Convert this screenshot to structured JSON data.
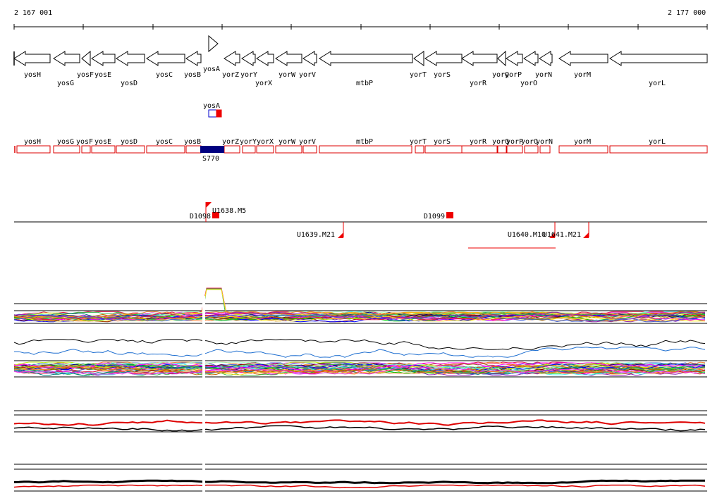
{
  "coords": {
    "start": "2 167 001",
    "end": "2 177 000"
  },
  "genes": [
    {
      "name": "yosH",
      "dir": "L",
      "row": "a"
    },
    {
      "name": "yosG",
      "dir": "L",
      "row": "b"
    },
    {
      "name": "yosF",
      "dir": "L",
      "row": "a"
    },
    {
      "name": "yosE",
      "dir": "L",
      "row": "a"
    },
    {
      "name": "yosD",
      "dir": "L",
      "row": "b"
    },
    {
      "name": "yosC",
      "dir": "L",
      "row": "a"
    },
    {
      "name": "yosB",
      "dir": "L",
      "row": "a"
    },
    {
      "name": "yosA",
      "dir": "R",
      "row": "a"
    },
    {
      "name": "yorZ",
      "dir": "L",
      "row": "a"
    },
    {
      "name": "yorY",
      "dir": "L",
      "row": "a"
    },
    {
      "name": "yorX",
      "dir": "L",
      "row": "b"
    },
    {
      "name": "yorW",
      "dir": "L",
      "row": "a"
    },
    {
      "name": "yorV",
      "dir": "L",
      "row": "a"
    },
    {
      "name": "mtbP",
      "dir": "L",
      "row": "b"
    },
    {
      "name": "yorT",
      "dir": "L",
      "row": "a"
    },
    {
      "name": "yorS",
      "dir": "L",
      "row": "a"
    },
    {
      "name": "yorR",
      "dir": "L",
      "row": "b"
    },
    {
      "name": "yorQ",
      "dir": "L",
      "row": "a"
    },
    {
      "name": "yorP",
      "dir": "L",
      "row": "a"
    },
    {
      "name": "yorO",
      "dir": "L",
      "row": "b"
    },
    {
      "name": "yorN",
      "dir": "L",
      "row": "a"
    },
    {
      "name": "yorM",
      "dir": "L",
      "row": "a"
    },
    {
      "name": "yorL",
      "dir": "L",
      "row": "b"
    }
  ],
  "ko_gene": {
    "name": "yosA"
  },
  "expression_genes": [
    "yosH",
    "yosG",
    "yosF",
    "yosE",
    "yosD",
    "yosC",
    "yosB",
    "yorZ",
    "yorY",
    "yorX",
    "yorW",
    "yorV",
    "mtbP",
    "yorT",
    "yorS",
    "yorR",
    "yorQ",
    "yorP",
    "yorO",
    "yorN",
    "yorM",
    "yorL"
  ],
  "selected_segment": {
    "label": "S770"
  },
  "markers_top": [
    {
      "label": "U1638.M5"
    },
    {
      "label": "D1098"
    },
    {
      "label": "D1099"
    }
  ],
  "markers_bottom": [
    {
      "label": "U1639.M21"
    },
    {
      "label": "U1640.M10"
    },
    {
      "label": "U1641.M21"
    }
  ],
  "colors": {
    "gene_outline": "#000000",
    "expr_box": "#dd0000",
    "segment_fill": "#000080",
    "marker": "#ee0000",
    "ko_blue": "#0000cc",
    "ko_red": "#ee0000"
  }
}
